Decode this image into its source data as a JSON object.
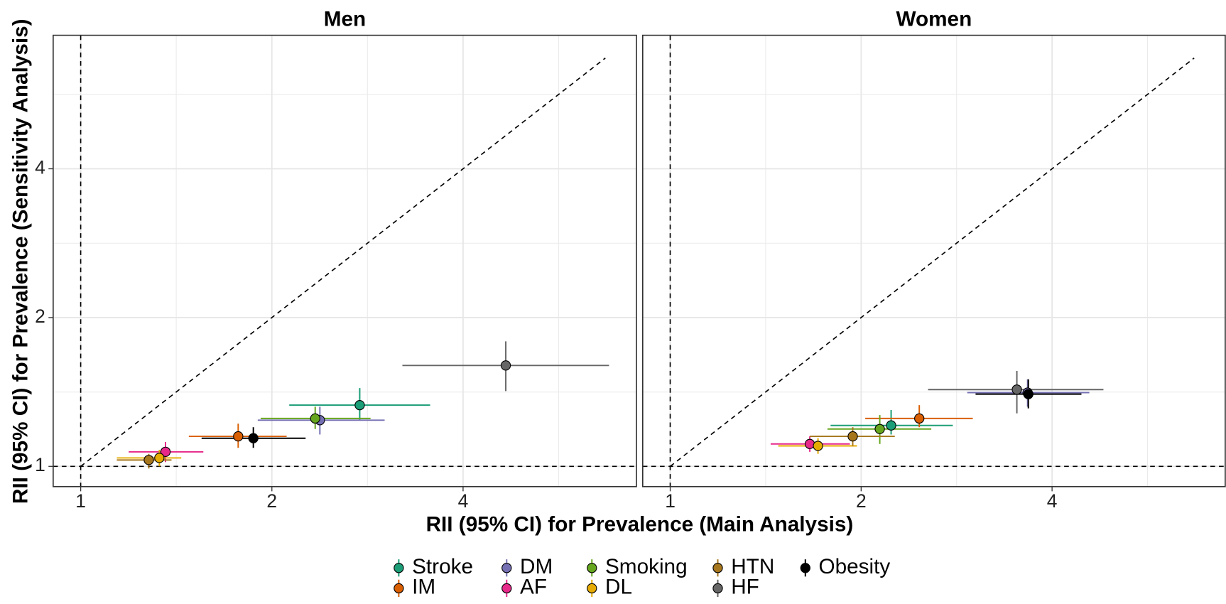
{
  "chart_data": [
    {
      "type": "scatter",
      "title": "Men",
      "x_label": "RII (95% CI) for Prevalence (Main Analysis)",
      "y_label": "RII (95% CI) for Prevalence (Sensitivity Analysis)",
      "xscale": "log",
      "yscale": "log",
      "xlim": [
        0.905,
        7.5
      ],
      "ylim": [
        0.91,
        7.45
      ],
      "xticks": [
        1,
        2,
        4
      ],
      "yticks": [
        1,
        2,
        4
      ],
      "minor_ticks": [
        1.414,
        2.828,
        5.657
      ],
      "grid": true,
      "hlines": [
        1
      ],
      "vlines": [
        1
      ],
      "diagonal": [
        1,
        6.7
      ],
      "series": [
        {
          "name": "Stroke",
          "color": "#1b9e77",
          "x": 2.75,
          "y": 1.33,
          "x_ci": [
            2.13,
            3.55
          ],
          "y_ci": [
            1.24,
            1.44
          ]
        },
        {
          "name": "IM",
          "color": "#d95f02",
          "x": 1.77,
          "y": 1.15,
          "x_ci": [
            1.48,
            2.11
          ],
          "y_ci": [
            1.09,
            1.22
          ]
        },
        {
          "name": "DM",
          "color": "#7570b3",
          "x": 2.38,
          "y": 1.24,
          "x_ci": [
            1.9,
            3.01
          ],
          "y_ci": [
            1.16,
            1.32
          ]
        },
        {
          "name": "AF",
          "color": "#e7298a",
          "x": 1.36,
          "y": 1.07,
          "x_ci": [
            1.19,
            1.56
          ],
          "y_ci": [
            1.02,
            1.12
          ]
        },
        {
          "name": "Smoking",
          "color": "#66a61e",
          "x": 2.34,
          "y": 1.25,
          "x_ci": [
            1.92,
            2.86
          ],
          "y_ci": [
            1.19,
            1.32
          ]
        },
        {
          "name": "DL",
          "color": "#e6ab02",
          "x": 1.33,
          "y": 1.04,
          "x_ci": [
            1.14,
            1.44
          ],
          "y_ci": [
            1.0,
            1.08
          ]
        },
        {
          "name": "HTN",
          "color": "#a6761d",
          "x": 1.28,
          "y": 1.03,
          "x_ci": [
            1.14,
            1.39
          ],
          "y_ci": [
            0.99,
            1.06
          ]
        },
        {
          "name": "HF",
          "color": "#666666",
          "x": 4.67,
          "y": 1.6,
          "x_ci": [
            3.21,
            6.79
          ],
          "y_ci": [
            1.42,
            1.79
          ]
        },
        {
          "name": "Obesity",
          "color": "#000000",
          "x": 1.87,
          "y": 1.14,
          "x_ci": [
            1.55,
            2.26
          ],
          "y_ci": [
            1.09,
            1.2
          ]
        }
      ]
    },
    {
      "type": "scatter",
      "title": "Women",
      "xscale": "log",
      "yscale": "log",
      "xlim": [
        0.905,
        7.5
      ],
      "ylim": [
        0.91,
        7.45
      ],
      "xticks": [
        1,
        2,
        4
      ],
      "yticks": [
        1,
        2,
        4
      ],
      "minor_ticks": [
        1.414,
        2.828,
        5.657
      ],
      "grid": true,
      "hlines": [
        1
      ],
      "vlines": [
        1
      ],
      "diagonal": [
        1,
        6.7
      ],
      "series": [
        {
          "name": "Stroke",
          "color": "#1b9e77",
          "x": 2.23,
          "y": 1.21,
          "x_ci": [
            1.79,
            2.79
          ],
          "y_ci": [
            1.16,
            1.3
          ]
        },
        {
          "name": "IM",
          "color": "#d95f02",
          "x": 2.47,
          "y": 1.25,
          "x_ci": [
            2.03,
            3.0
          ],
          "y_ci": [
            1.2,
            1.33
          ]
        },
        {
          "name": "DM",
          "color": "#7570b3",
          "x": 3.66,
          "y": 1.41,
          "x_ci": [
            2.94,
            4.58
          ],
          "y_ci": [
            1.32,
            1.5
          ]
        },
        {
          "name": "AF",
          "color": "#e7298a",
          "x": 1.66,
          "y": 1.11,
          "x_ci": [
            1.44,
            1.92
          ],
          "y_ci": [
            1.07,
            1.15
          ]
        },
        {
          "name": "Smoking",
          "color": "#66a61e",
          "x": 2.14,
          "y": 1.19,
          "x_ci": [
            1.77,
            2.58
          ],
          "y_ci": [
            1.11,
            1.27
          ]
        },
        {
          "name": "DL",
          "color": "#e6ab02",
          "x": 1.71,
          "y": 1.1,
          "x_ci": [
            1.48,
            1.97
          ],
          "y_ci": [
            1.06,
            1.14
          ]
        },
        {
          "name": "HTN",
          "color": "#a6761d",
          "x": 1.94,
          "y": 1.15,
          "x_ci": [
            1.66,
            2.26
          ],
          "y_ci": [
            1.1,
            1.2
          ]
        },
        {
          "name": "HF",
          "color": "#666666",
          "x": 3.52,
          "y": 1.43,
          "x_ci": [
            2.55,
            4.82
          ],
          "y_ci": [
            1.28,
            1.56
          ]
        },
        {
          "name": "Obesity",
          "color": "#000000",
          "x": 3.67,
          "y": 1.4,
          "x_ci": [
            3.03,
            4.45
          ],
          "y_ci": [
            1.31,
            1.5
          ]
        }
      ]
    }
  ]
}
